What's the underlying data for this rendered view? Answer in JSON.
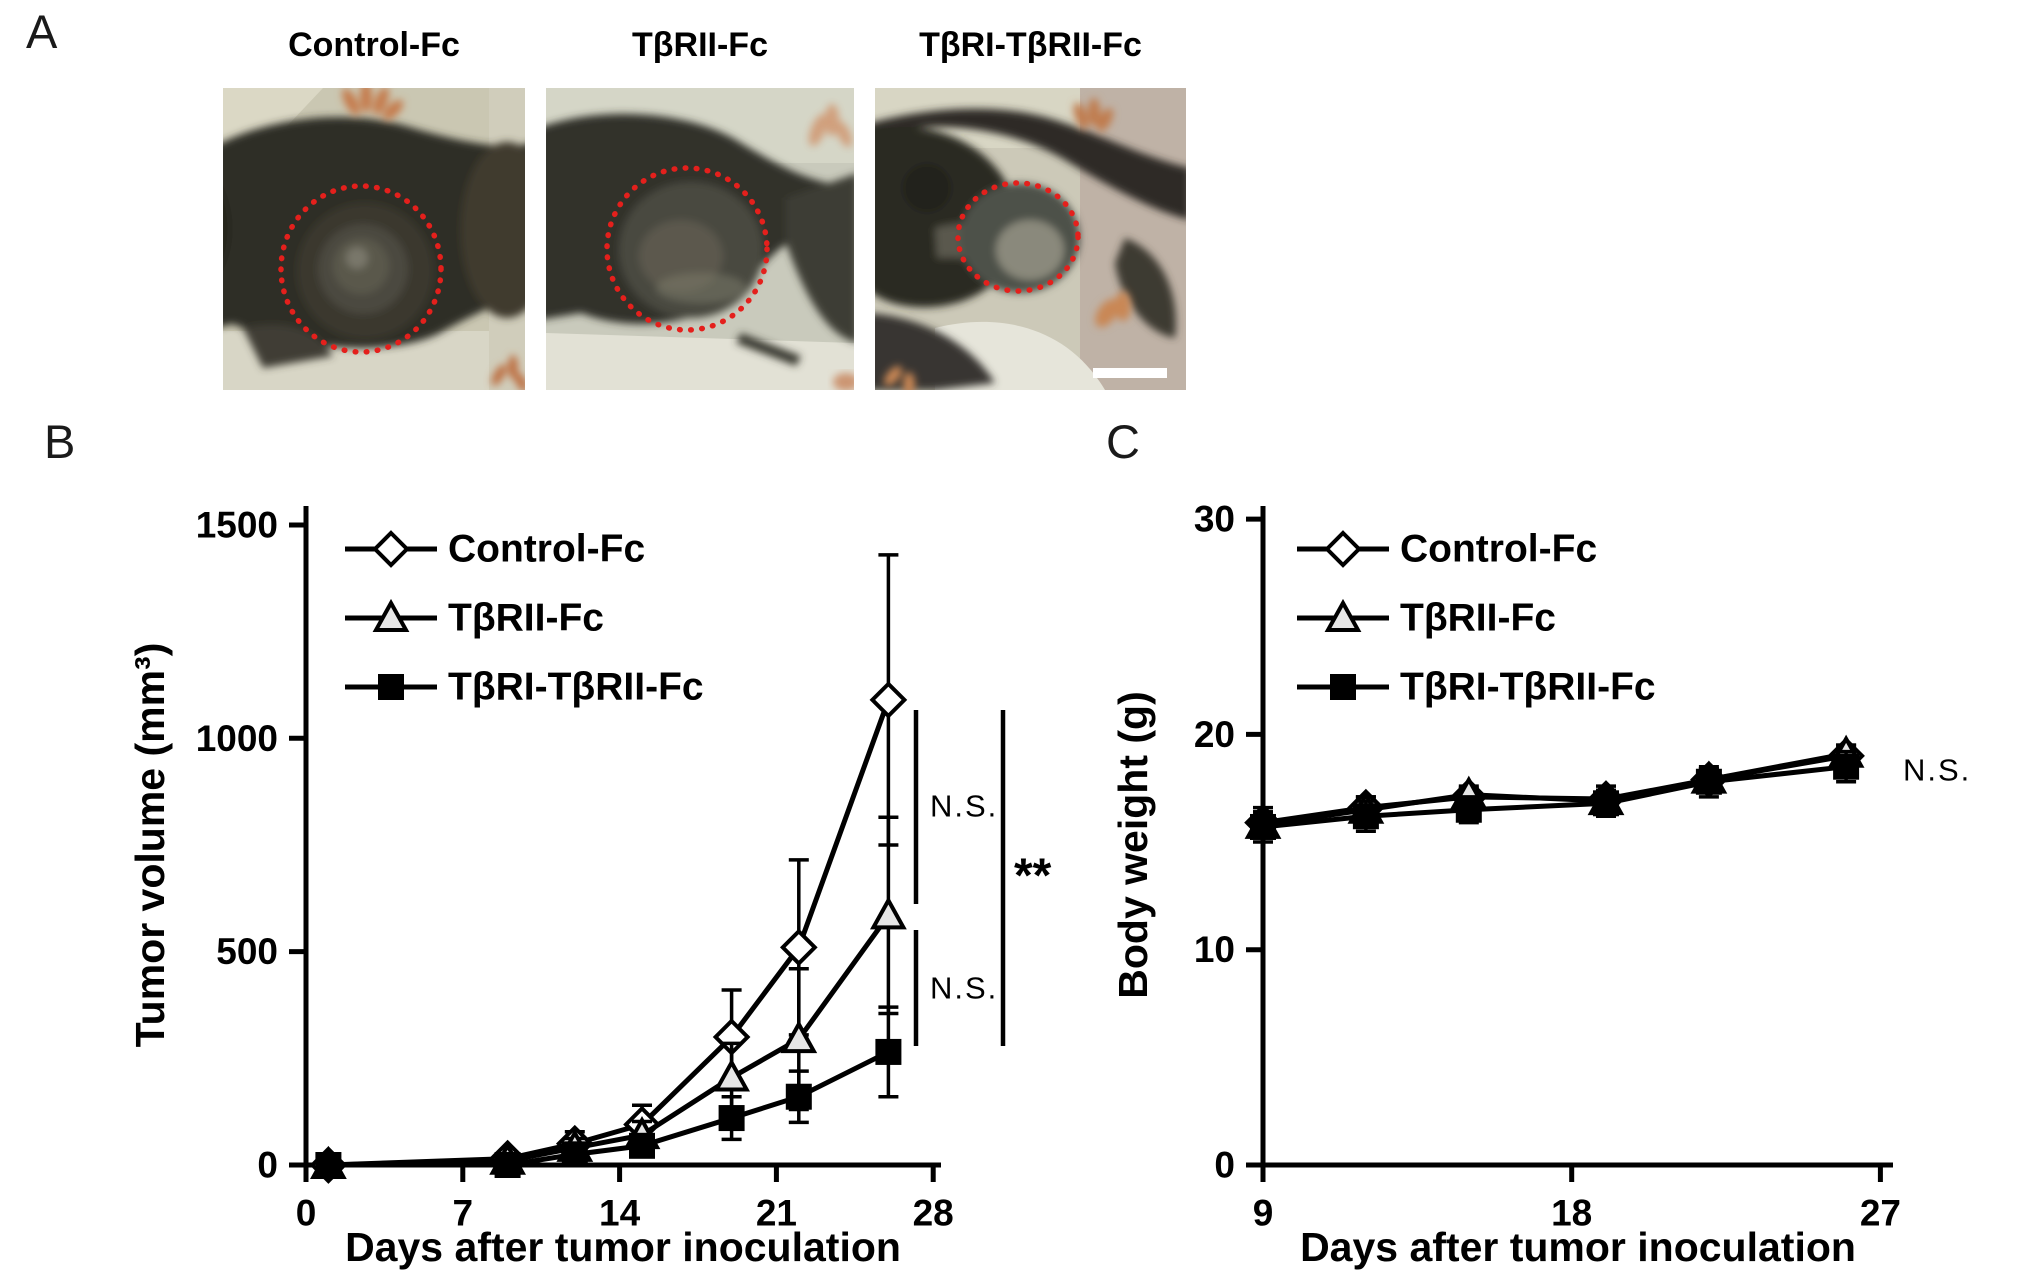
{
  "figure": {
    "panel_a": {
      "label": "A",
      "photos": [
        {
          "title": "Control-Fc"
        },
        {
          "title": "TβRII-Fc"
        },
        {
          "title": "TβRI-TβRII-Fc"
        }
      ]
    },
    "panel_b_label": "B",
    "panel_c_label": "C"
  },
  "chart_data": [
    {
      "panel": "B",
      "type": "line",
      "title": "",
      "xlabel": "Days after tumor inoculation",
      "ylabel": "Tumor volume (mm³)",
      "xlim": [
        0,
        28.5
      ],
      "ylim": [
        0,
        1500
      ],
      "xticks": [
        0,
        7,
        14,
        21,
        28
      ],
      "yticks": [
        0,
        500,
        1000,
        1500
      ],
      "grid": false,
      "legend_position": "top-left",
      "x_days": [
        1,
        9,
        12,
        15,
        19,
        22,
        26
      ],
      "series": [
        {
          "name": "Control-Fc",
          "marker": "diamond",
          "marker_fill": "open",
          "values": [
            0,
            15,
            50,
            95,
            300,
            510,
            1090
          ],
          "errors": [
            4,
            12,
            28,
            45,
            110,
            205,
            340
          ]
        },
        {
          "name": "TβRII-Fc",
          "marker": "triangle",
          "marker_fill": "open",
          "values": [
            0,
            10,
            40,
            70,
            205,
            295,
            585
          ],
          "errors": [
            4,
            10,
            22,
            32,
            80,
            165,
            230
          ]
        },
        {
          "name": "TβRI-TβRII-Fc",
          "marker": "square",
          "marker_fill": "solid",
          "values": [
            0,
            0,
            25,
            45,
            110,
            160,
            265
          ],
          "errors": [
            3,
            6,
            15,
            25,
            50,
            60,
            105
          ]
        }
      ],
      "annotations": [
        {
          "text": "N.S.",
          "compare": "Control-Fc vs TβRII-Fc"
        },
        {
          "text": "N.S.",
          "compare": "TβRII-Fc vs TβRI-TβRII-Fc"
        },
        {
          "text": "**",
          "compare": "Control-Fc vs TβRI-TβRII-Fc"
        }
      ]
    },
    {
      "panel": "C",
      "type": "line",
      "title": "",
      "xlabel": "Days after tumor inoculation",
      "ylabel": "Body weight (g)",
      "xlim": [
        9,
        27.5
      ],
      "ylim": [
        0,
        30
      ],
      "xticks": [
        9,
        18,
        27
      ],
      "yticks": [
        0,
        10,
        20,
        30
      ],
      "grid": false,
      "legend_position": "top-left",
      "x_days": [
        9,
        12,
        15,
        19,
        22,
        26
      ],
      "series": [
        {
          "name": "Control-Fc",
          "marker": "diamond",
          "marker_fill": "open",
          "values": [
            15.9,
            16.6,
            17.1,
            17.0,
            17.9,
            19.0
          ],
          "errors": [
            0.7,
            0.5,
            0.4,
            0.6,
            0.5,
            0.5
          ]
        },
        {
          "name": "TβRII-Fc",
          "marker": "triangle",
          "marker_fill": "open",
          "values": [
            15.8,
            16.5,
            17.2,
            16.9,
            17.9,
            19.1
          ],
          "errors": [
            0.6,
            0.6,
            0.4,
            0.5,
            0.5,
            0.4
          ]
        },
        {
          "name": "TβRI-TβRII-Fc",
          "marker": "square",
          "marker_fill": "solid",
          "values": [
            15.7,
            16.2,
            16.5,
            16.8,
            17.8,
            18.5
          ],
          "errors": [
            0.7,
            0.7,
            0.6,
            0.6,
            0.7,
            0.7
          ]
        }
      ],
      "annotations": [
        {
          "text": "N.S.",
          "compare": "all groups"
        }
      ]
    }
  ]
}
